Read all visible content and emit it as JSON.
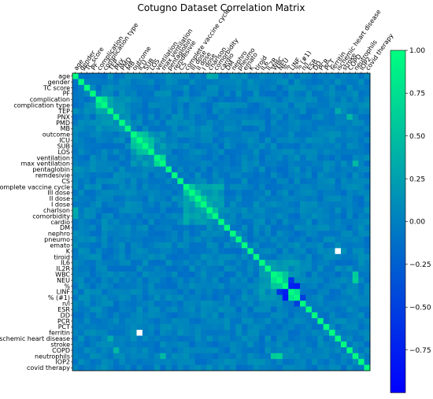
{
  "chart_data": {
    "type": "heatmap",
    "title": "Cotugno Dataset Correlation Matrix",
    "labels": [
      "age",
      "gender",
      "TC score",
      "PF",
      "complication",
      "complication type",
      "TEP",
      "PNX",
      "PMD",
      "MB",
      "outcome",
      "ICU",
      "SUB",
      "LOS",
      "ventilation",
      "max ventilation",
      "pentaglobin",
      "remdesivie",
      "CS",
      "complete vaccine cycle",
      "III dose",
      "II dose",
      "I dose",
      "charlson",
      "comorbidity",
      "cardio",
      "DM",
      "nephro",
      "pneumo",
      "emato",
      "K",
      "tiroid",
      "IL6",
      "IL2R",
      "WBC",
      "NEU",
      "%",
      "LINF",
      "% (#1)",
      "n/l",
      "ESR",
      "DD",
      "PCR",
      "PCT",
      "ferritin",
      "ischemic heart disease",
      "stroke",
      "COPD",
      "neutrophils",
      "IOP2",
      "covid therapy"
    ],
    "colorbar": {
      "ticks": [
        "1.00",
        "0.75",
        "0.50",
        "0.25",
        "0.00",
        "−0.25",
        "−0.50",
        "−0.75"
      ],
      "range": [
        -1.0,
        1.0
      ],
      "colormap": "winter",
      "low_color": "#0000ff",
      "high_color": "#00ff80"
    },
    "strong_pairs": [
      {
        "a": "complication",
        "b": "complication type",
        "value": 0.75
      },
      {
        "a": "outcome",
        "b": "ICU",
        "value": 0.6
      },
      {
        "a": "outcome",
        "b": "SUB",
        "value": 0.5
      },
      {
        "a": "ICU",
        "b": "SUB",
        "value": 0.65
      },
      {
        "a": "ICU",
        "b": "LOS",
        "value": 0.5
      },
      {
        "a": "SUB",
        "b": "LOS",
        "value": 0.55
      },
      {
        "a": "ventilation",
        "b": "max ventilation",
        "value": 0.7
      },
      {
        "a": "complete vaccine cycle",
        "b": "III dose",
        "value": 0.55
      },
      {
        "a": "III dose",
        "b": "II dose",
        "value": 0.55
      },
      {
        "a": "II dose",
        "b": "I dose",
        "value": 0.6
      },
      {
        "a": "charlson",
        "b": "comorbidity",
        "value": 0.5
      },
      {
        "a": "WBC",
        "b": "NEU",
        "value": 0.8
      },
      {
        "a": "WBC",
        "b": "%",
        "value": 0.55
      },
      {
        "a": "NEU",
        "b": "%",
        "value": 0.6
      },
      {
        "a": "%",
        "b": "LINF",
        "value": -0.75
      },
      {
        "a": "LINF",
        "b": "% (#1)",
        "value": 0.8
      },
      {
        "a": "NEU",
        "b": "LINF",
        "value": -0.6
      },
      {
        "a": "%",
        "b": "% (#1)",
        "value": -0.8
      },
      {
        "a": "WBC",
        "b": "neutrophils",
        "value": 0.6
      },
      {
        "a": "NEU",
        "b": "neutrophils",
        "value": 0.65
      },
      {
        "a": "% (#1)",
        "b": "n/l",
        "value": -0.5
      },
      {
        "a": "PNX",
        "b": "COPD",
        "value": 0.45
      },
      {
        "a": "max ventilation",
        "b": "neutrophils",
        "value": 0.45
      },
      {
        "a": "TEP",
        "b": "ischemic heart disease",
        "value": 0.35
      },
      {
        "a": "age",
        "b": "charlson",
        "value": 0.35
      },
      {
        "a": "age",
        "b": "comorbidity",
        "value": 0.3
      }
    ],
    "missing_cells": [
      {
        "a": "K",
        "b": "ischemic heart disease"
      },
      {
        "a": "ferritin",
        "b": "ICU"
      }
    ]
  }
}
